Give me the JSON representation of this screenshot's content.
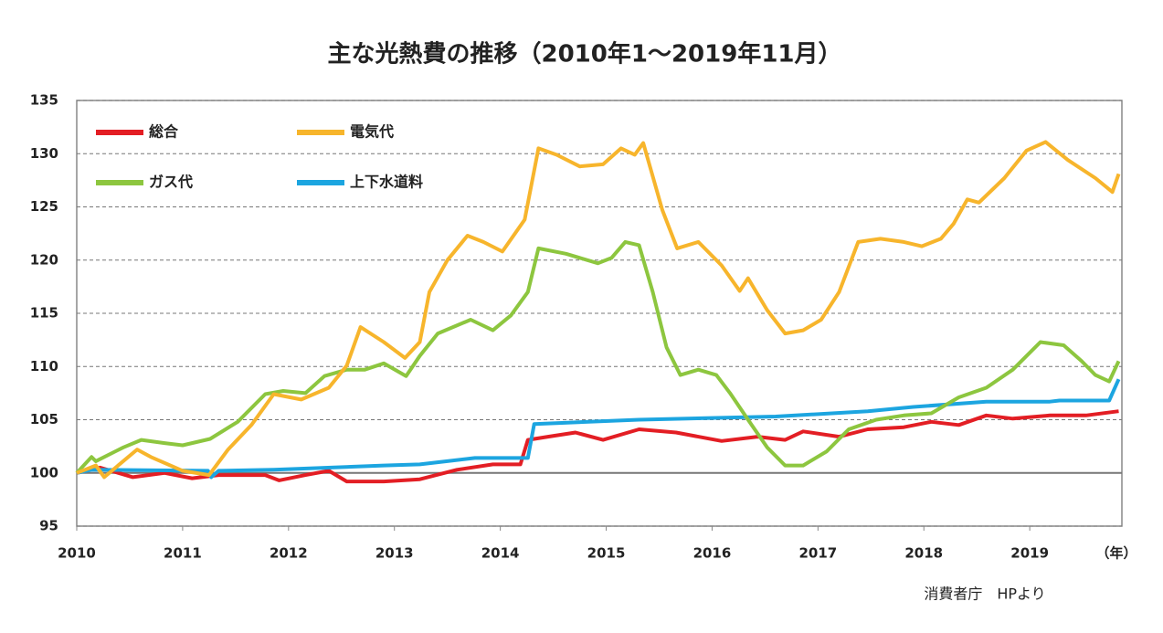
{
  "chart_data": {
    "type": "line",
    "title": "主な光熱費の推移（2010年1～2019年11月）",
    "x_label": "（年）",
    "source": "消費者庁　HPより",
    "xlim": [
      2010,
      2019.87
    ],
    "xticks": [
      2010,
      2011,
      2012,
      2013,
      2014,
      2015,
      2016,
      2017,
      2018,
      2019
    ],
    "ylim": [
      95,
      135
    ],
    "yticks": [
      95,
      100,
      105,
      110,
      115,
      120,
      125,
      130,
      135
    ],
    "grid": true,
    "reference_line": 100,
    "legend": "top-left",
    "series": [
      {
        "name": "総合",
        "color": "#e31e24",
        "x": [
          2010,
          2010.22,
          2010.53,
          2010.83,
          2011.09,
          2011.34,
          2011.78,
          2011.91,
          2012.16,
          2012.38,
          2012.55,
          2012.9,
          2013.24,
          2013.59,
          2013.93,
          2014.19,
          2014.26,
          2014.45,
          2014.71,
          2014.97,
          2015.31,
          2015.66,
          2016.09,
          2016.43,
          2016.69,
          2016.86,
          2017.2,
          2017.47,
          2017.81,
          2018.07,
          2018.33,
          2018.59,
          2018.84,
          2019.19,
          2019.53,
          2019.84
        ],
        "values": [
          100,
          100.5,
          99.6,
          100,
          99.5,
          99.8,
          99.8,
          99.3,
          99.8,
          100.2,
          99.2,
          99.2,
          99.4,
          100.3,
          100.8,
          100.8,
          103.1,
          103.4,
          103.8,
          103.1,
          104.1,
          103.8,
          103,
          103.4,
          103.1,
          103.9,
          103.4,
          104.1,
          104.3,
          104.8,
          104.5,
          105.4,
          105.1,
          105.4,
          105.4,
          105.8
        ]
      },
      {
        "name": "電気代",
        "color": "#f7b52c",
        "x": [
          2010,
          2010.18,
          2010.26,
          2010.57,
          2010.7,
          2011,
          2011.25,
          2011.43,
          2011.65,
          2011.86,
          2012.12,
          2012.38,
          2012.55,
          2012.68,
          2012.9,
          2013.1,
          2013.24,
          2013.33,
          2013.5,
          2013.69,
          2013.84,
          2014.02,
          2014.23,
          2014.36,
          2014.53,
          2014.75,
          2014.97,
          2015.14,
          2015.27,
          2015.35,
          2015.53,
          2015.67,
          2015.87,
          2016.09,
          2016.26,
          2016.34,
          2016.52,
          2016.69,
          2016.86,
          2017.03,
          2017.2,
          2017.38,
          2017.59,
          2017.81,
          2017.98,
          2018.16,
          2018.28,
          2018.41,
          2018.52,
          2018.76,
          2018.97,
          2019.15,
          2019.36,
          2019.62,
          2019.78,
          2019.84
        ],
        "values": [
          100,
          100.7,
          99.6,
          102.2,
          101.5,
          100.2,
          99.8,
          102.2,
          104.5,
          107.4,
          106.9,
          108,
          110.1,
          113.7,
          112.3,
          110.8,
          112.3,
          117,
          120,
          122.3,
          121.7,
          120.8,
          123.8,
          130.5,
          129.9,
          128.8,
          129,
          130.5,
          129.9,
          131,
          124.7,
          121.1,
          121.7,
          119.5,
          117.1,
          118.3,
          115.3,
          113.1,
          113.4,
          114.4,
          117,
          121.7,
          122,
          121.7,
          121.3,
          122,
          123.4,
          125.7,
          125.4,
          127.7,
          130.3,
          131.1,
          129.4,
          127.7,
          126.4,
          128.1
        ]
      },
      {
        "name": "ガス代",
        "color": "#8dc63f",
        "x": [
          2010,
          2010.14,
          2010.18,
          2010.44,
          2010.61,
          2010.83,
          2011,
          2011.26,
          2011.52,
          2011.78,
          2011.95,
          2012.16,
          2012.34,
          2012.55,
          2012.72,
          2012.9,
          2013.11,
          2013.24,
          2013.41,
          2013.72,
          2013.93,
          2014.1,
          2014.26,
          2014.36,
          2014.62,
          2014.92,
          2015.05,
          2015.18,
          2015.31,
          2015.44,
          2015.57,
          2015.7,
          2015.87,
          2016.04,
          2016.17,
          2016.34,
          2016.52,
          2016.69,
          2016.86,
          2017.08,
          2017.29,
          2017.55,
          2017.81,
          2018.07,
          2018.33,
          2018.59,
          2018.84,
          2019.1,
          2019.32,
          2019.49,
          2019.62,
          2019.75,
          2019.84
        ],
        "values": [
          100,
          101.5,
          101.1,
          102.4,
          103.1,
          102.8,
          102.6,
          103.2,
          104.8,
          107.4,
          107.7,
          107.5,
          109.1,
          109.7,
          109.7,
          110.3,
          109.1,
          111,
          113.1,
          114.4,
          113.4,
          114.8,
          117,
          121.1,
          120.6,
          119.7,
          120.2,
          121.7,
          121.4,
          117,
          111.8,
          109.2,
          109.7,
          109.2,
          107.5,
          105,
          102.4,
          100.7,
          100.7,
          102,
          104.1,
          105,
          105.4,
          105.6,
          107.1,
          108,
          109.7,
          112.3,
          112,
          110.5,
          109.2,
          108.6,
          110.5
        ]
      },
      {
        "name": "上下水道料",
        "color": "#1ca5e0",
        "x": [
          2010,
          2010.14,
          2011.24,
          2011.27,
          2011.34,
          2011.86,
          2012.9,
          2013.24,
          2013.76,
          2014.26,
          2014.32,
          2015.31,
          2016.6,
          2017.47,
          2017.9,
          2018.59,
          2019.19,
          2019.28,
          2019.75,
          2019.84
        ],
        "values": [
          100,
          100.3,
          100.2,
          99.6,
          100.2,
          100.3,
          100.7,
          100.8,
          101.4,
          101.4,
          104.6,
          105,
          105.3,
          105.8,
          106.2,
          106.7,
          106.7,
          106.8,
          106.8,
          108.8
        ]
      }
    ]
  }
}
